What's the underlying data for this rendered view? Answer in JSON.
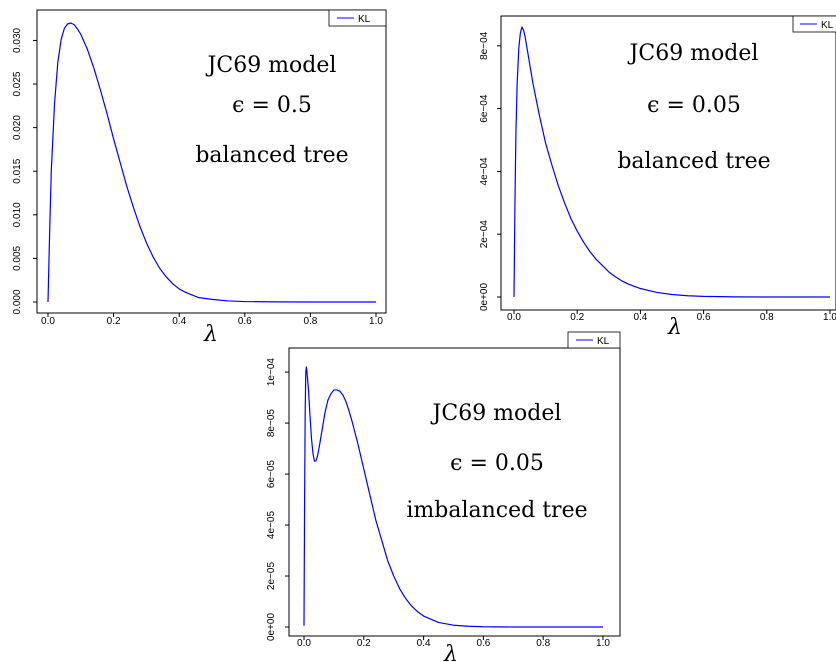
{
  "chart_data": [
    {
      "type": "line",
      "xlabel": "λ",
      "ylabel": "",
      "xlim": [
        0,
        1
      ],
      "ylim": [
        0,
        0.032
      ],
      "xticks": [
        "0.0",
        "0.2",
        "0.4",
        "0.6",
        "0.8",
        "1.0"
      ],
      "yticks": [
        "0.000",
        "0.005",
        "0.010",
        "0.015",
        "0.020",
        "0.025",
        "0.030"
      ],
      "yvals": [
        0,
        0.005,
        0.01,
        0.015,
        0.02,
        0.025,
        0.03
      ],
      "legend": [
        "KL"
      ],
      "legend_position": "top-right",
      "color": "#0000ff",
      "annotations": [
        "JC69 model",
        "ϵ = 0.5",
        "balanced tree"
      ],
      "series": [
        {
          "x": [
            0,
            0.005,
            0.01,
            0.02,
            0.03,
            0.04,
            0.05,
            0.06,
            0.07,
            0.08,
            0.09,
            0.1,
            0.12,
            0.14,
            0.16,
            0.18,
            0.2,
            0.22,
            0.24,
            0.26,
            0.28,
            0.3,
            0.32,
            0.34,
            0.36,
            0.38,
            0.4,
            0.42,
            0.44,
            0.46,
            0.48,
            0.5,
            0.55,
            0.6,
            0.7,
            0.8,
            0.9,
            1.0
          ],
          "y": [
            0,
            0.008,
            0.015,
            0.0228,
            0.0275,
            0.0301,
            0.0314,
            0.0319,
            0.032,
            0.0318,
            0.0313,
            0.0307,
            0.029,
            0.0268,
            0.0243,
            0.0216,
            0.0187,
            0.016,
            0.0133,
            0.0109,
            0.0087,
            0.0068,
            0.0052,
            0.0039,
            0.0029,
            0.0021,
            0.0015,
            0.0011,
            0.0008,
            0.0005,
            0.0004,
            0.0003,
            0.00012,
            5e-05,
            1e-05,
            0,
            0,
            0
          ]
        }
      ]
    },
    {
      "type": "line",
      "xlabel": "λ",
      "ylabel": "",
      "xlim": [
        0,
        1
      ],
      "ylim": [
        0,
        0.00086
      ],
      "xticks": [
        "0.0",
        "0.2",
        "0.4",
        "0.6",
        "0.8",
        "1.0"
      ],
      "yticks": [
        "0e+00",
        "2e−04",
        "4e−04",
        "6e−04",
        "8e−04"
      ],
      "yvals": [
        0,
        0.0002,
        0.0004,
        0.0006,
        0.0008
      ],
      "legend": [
        "KL"
      ],
      "legend_position": "top-right",
      "color": "#0000ff",
      "annotations": [
        "JC69 model",
        "ϵ = 0.05",
        "balanced tree"
      ],
      "series": [
        {
          "x": [
            0,
            0.003,
            0.006,
            0.01,
            0.015,
            0.02,
            0.025,
            0.03,
            0.035,
            0.04,
            0.05,
            0.06,
            0.08,
            0.1,
            0.12,
            0.14,
            0.16,
            0.18,
            0.2,
            0.22,
            0.24,
            0.26,
            0.28,
            0.3,
            0.32,
            0.34,
            0.36,
            0.38,
            0.4,
            0.45,
            0.5,
            0.55,
            0.6,
            0.7,
            0.8,
            0.9,
            1.0
          ],
          "y": [
            0,
            0.0003,
            0.00052,
            0.00068,
            0.00079,
            0.00084,
            0.00086,
            0.00085,
            0.00083,
            0.0008,
            0.00074,
            0.00068,
            0.00058,
            0.00049,
            0.00042,
            0.000355,
            0.0003,
            0.00025,
            0.00021,
            0.000175,
            0.000145,
            0.00012,
            0.0001,
            8e-05,
            6.5e-05,
            5.2e-05,
            4.2e-05,
            3.4e-05,
            2.7e-05,
            1.5e-05,
            8e-06,
            4e-06,
            2e-06,
            5e-07,
            0,
            0,
            0
          ]
        }
      ]
    },
    {
      "type": "line",
      "xlabel": "λ",
      "ylabel": "",
      "xlim": [
        0,
        1
      ],
      "ylim": [
        0,
        0.000102
      ],
      "xticks": [
        "0.0",
        "0.2",
        "0.4",
        "0.6",
        "0.8",
        "1.0"
      ],
      "yticks": [
        "0e+00",
        "2e−05",
        "4e−05",
        "6e−05",
        "8e−05",
        "1e−04"
      ],
      "yvals": [
        0,
        2e-05,
        4e-05,
        6e-05,
        8e-05,
        0.0001
      ],
      "legend": [
        "KL"
      ],
      "legend_position": "top-right",
      "color": "#0000ff",
      "annotations": [
        "JC69 model",
        "ϵ = 0.05",
        "imbalanced tree"
      ],
      "series": [
        {
          "x": [
            0,
            0.002,
            0.004,
            0.006,
            0.008,
            0.01,
            0.015,
            0.02,
            0.025,
            0.03,
            0.035,
            0.04,
            0.045,
            0.05,
            0.06,
            0.07,
            0.08,
            0.09,
            0.1,
            0.11,
            0.12,
            0.13,
            0.14,
            0.15,
            0.16,
            0.18,
            0.2,
            0.22,
            0.24,
            0.26,
            0.28,
            0.3,
            0.32,
            0.34,
            0.36,
            0.38,
            0.4,
            0.45,
            0.5,
            0.55,
            0.6,
            0.7,
            0.8,
            0.9,
            1.0
          ],
          "y": [
            5e-07,
            5e-05,
            8.5e-05,
            0.0001,
            0.000102,
            0.0001,
            9.3e-05,
            8.3e-05,
            7.4e-05,
            6.8e-05,
            6.5e-05,
            6.52e-05,
            6.7e-05,
            7e-05,
            7.7e-05,
            8.4e-05,
            8.9e-05,
            9.15e-05,
            9.3e-05,
            9.3e-05,
            9.25e-05,
            9.1e-05,
            8.85e-05,
            8.5e-05,
            8.1e-05,
            7.2e-05,
            6.2e-05,
            5.2e-05,
            4.2e-05,
            3.4e-05,
            2.6e-05,
            2e-05,
            1.5e-05,
            1.12e-05,
            8.2e-06,
            6e-06,
            4.3e-06,
            1.8e-06,
            7e-07,
            3e-07,
            1e-07,
            0,
            0,
            0,
            0
          ]
        }
      ]
    }
  ]
}
